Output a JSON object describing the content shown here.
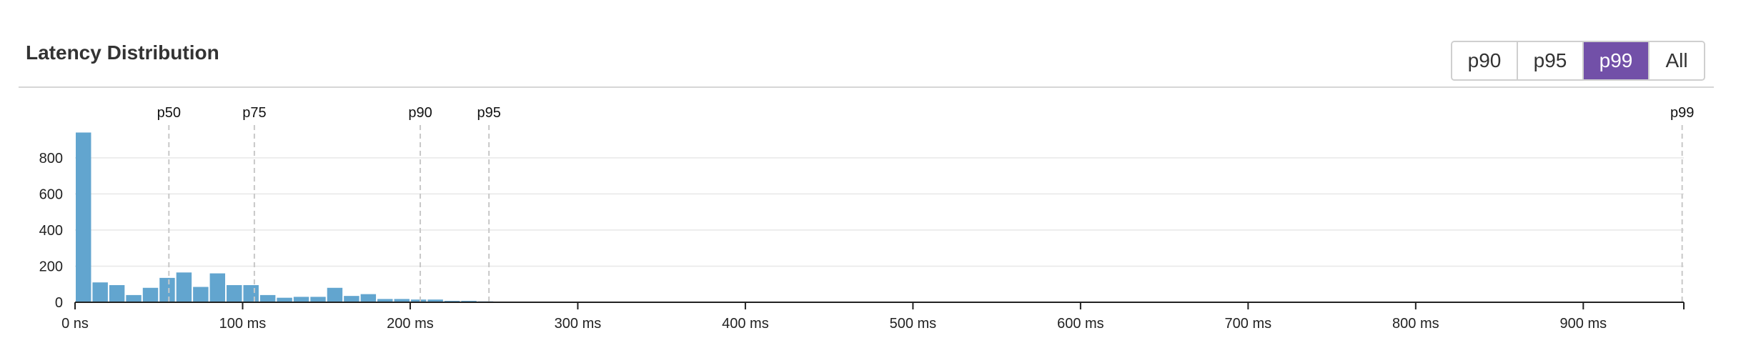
{
  "header": {
    "title": "Latency Distribution"
  },
  "toolbar": {
    "buttons": [
      {
        "label": "p90",
        "active": false
      },
      {
        "label": "p95",
        "active": false
      },
      {
        "label": "p99",
        "active": true
      },
      {
        "label": "All",
        "active": false
      }
    ]
  },
  "colors": {
    "bar": "#62a5cf",
    "active_button": "#7250a8",
    "grid": "#e8e8e8",
    "marker": "#c8c8c8"
  },
  "chart_data": {
    "type": "bar",
    "xlabel": "",
    "ylabel": "",
    "xlim": [
      0,
      960
    ],
    "ylim": [
      0,
      1000
    ],
    "bin_width_ms": 10,
    "grid": true,
    "x_ticks": [
      {
        "value": 0,
        "label": "0 ns"
      },
      {
        "value": 100,
        "label": "100 ms"
      },
      {
        "value": 200,
        "label": "200 ms"
      },
      {
        "value": 300,
        "label": "300 ms"
      },
      {
        "value": 400,
        "label": "400 ms"
      },
      {
        "value": 500,
        "label": "500 ms"
      },
      {
        "value": 600,
        "label": "600 ms"
      },
      {
        "value": 700,
        "label": "700 ms"
      },
      {
        "value": 800,
        "label": "800 ms"
      },
      {
        "value": 900,
        "label": "900 ms"
      }
    ],
    "y_ticks": [
      {
        "value": 0,
        "label": "0"
      },
      {
        "value": 200,
        "label": "200"
      },
      {
        "value": 400,
        "label": "400"
      },
      {
        "value": 600,
        "label": "600"
      },
      {
        "value": 800,
        "label": "800"
      }
    ],
    "bins_start_ms": [
      0,
      10,
      20,
      30,
      40,
      50,
      60,
      70,
      80,
      90,
      100,
      110,
      120,
      130,
      140,
      150,
      160,
      170,
      180,
      190,
      200,
      210,
      220,
      230,
      240
    ],
    "values": [
      940,
      110,
      95,
      40,
      80,
      135,
      165,
      85,
      160,
      95,
      95,
      40,
      25,
      30,
      30,
      80,
      35,
      45,
      18,
      18,
      15,
      15,
      8,
      8,
      5
    ],
    "percentiles": [
      {
        "label": "p50",
        "value": 56
      },
      {
        "label": "p75",
        "value": 107
      },
      {
        "label": "p90",
        "value": 206
      },
      {
        "label": "p95",
        "value": 247
      },
      {
        "label": "p99",
        "value": 959
      }
    ]
  }
}
